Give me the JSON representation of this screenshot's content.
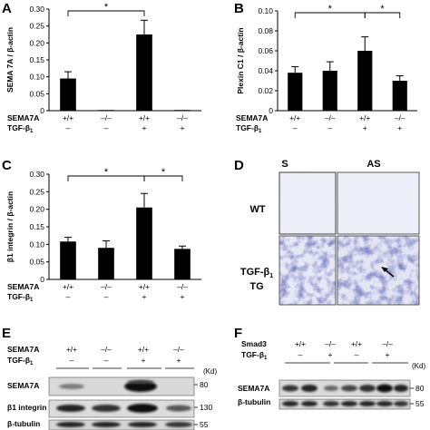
{
  "panels": {
    "A": {
      "letter": "A"
    },
    "B": {
      "letter": "B"
    },
    "C": {
      "letter": "C"
    },
    "D": {
      "letter": "D",
      "col_s": "S",
      "col_as": "AS",
      "row_wt": "WT",
      "row_tg_1": "TGF-β",
      "row_tg_sub": "1",
      "row_tg_2": "TG"
    },
    "E": {
      "letter": "E",
      "row_sema": "SEMA7A",
      "row_tgf": "TGF-β",
      "row_tgf_sub": "1",
      "sema_states": [
        "+/+",
        "–/–",
        "+/+",
        "–/–"
      ],
      "tgf_states": [
        "–",
        "–",
        "+",
        "+"
      ],
      "kd": "(Kd)",
      "bands": [
        "SEMA7A",
        "β1 integrin",
        "β-tubulin"
      ],
      "mw": [
        "80",
        "130",
        "55"
      ]
    },
    "F": {
      "letter": "F",
      "row_smad": "Smad3",
      "row_tgf": "TGF-β",
      "row_tgf_sub": "1",
      "smad_states": [
        "+/+",
        "–/–",
        "+/+",
        "–/–"
      ],
      "tgf_states": [
        "–",
        "+",
        "–",
        "+"
      ],
      "kd": "(Kd)",
      "bands": [
        "SEMA7A",
        "β-tubulin"
      ],
      "mw": [
        "80",
        "55"
      ]
    }
  },
  "genotype_rows": {
    "sema_label": "SEMA7A",
    "tgf_label": "TGF-β",
    "tgf_sub": "1",
    "sema": [
      "+/+",
      "–/–",
      "+/+",
      "–/–"
    ],
    "tgf": [
      "–",
      "–",
      "+",
      "+"
    ]
  },
  "significance_marker": "*",
  "chart_data": [
    {
      "panel": "A",
      "type": "bar",
      "categories": [
        "1",
        "2",
        "3",
        "4"
      ],
      "values": [
        0.095,
        0.002,
        0.225,
        0.002
      ],
      "errors": [
        0.02,
        0.001,
        0.042,
        0.001
      ],
      "ylabel": "SEMA 7A / β-actin",
      "ylim": [
        0,
        0.3
      ],
      "yticks": [
        0,
        0.05,
        0.1,
        0.15,
        0.2,
        0.25,
        0.3
      ],
      "yticklabels": [
        "0",
        "0.05",
        "0.10",
        "0.15",
        "0.20",
        "0.25",
        "0.30"
      ],
      "brackets": [
        [
          1,
          3
        ]
      ]
    },
    {
      "panel": "B",
      "type": "bar",
      "categories": [
        "1",
        "2",
        "3",
        "4"
      ],
      "values": [
        0.038,
        0.04,
        0.06,
        0.03
      ],
      "errors": [
        0.006,
        0.009,
        0.014,
        0.005
      ],
      "ylabel": "Plexin C1 / β-actin",
      "ylim": [
        0,
        0.1
      ],
      "yticks": [
        0,
        0.02,
        0.04,
        0.06,
        0.08,
        0.1
      ],
      "yticklabels": [
        "0",
        "0.02",
        "0.04",
        "0.06",
        "0.08",
        "0.10"
      ],
      "brackets": [
        [
          1,
          3
        ],
        [
          3,
          4
        ]
      ]
    },
    {
      "panel": "C",
      "type": "bar",
      "categories": [
        "1",
        "2",
        "3",
        "4"
      ],
      "values": [
        0.108,
        0.09,
        0.205,
        0.087
      ],
      "errors": [
        0.012,
        0.02,
        0.04,
        0.008
      ],
      "ylabel": "β1 integrin / β-actin",
      "ylim": [
        0,
        0.3
      ],
      "yticks": [
        0,
        0.05,
        0.1,
        0.15,
        0.2,
        0.25,
        0.3
      ],
      "yticklabels": [
        "0",
        "0.05",
        "0.10",
        "0.15",
        "0.20",
        "0.25",
        "0.30"
      ],
      "brackets": [
        [
          1,
          3
        ],
        [
          3,
          4
        ]
      ]
    }
  ]
}
